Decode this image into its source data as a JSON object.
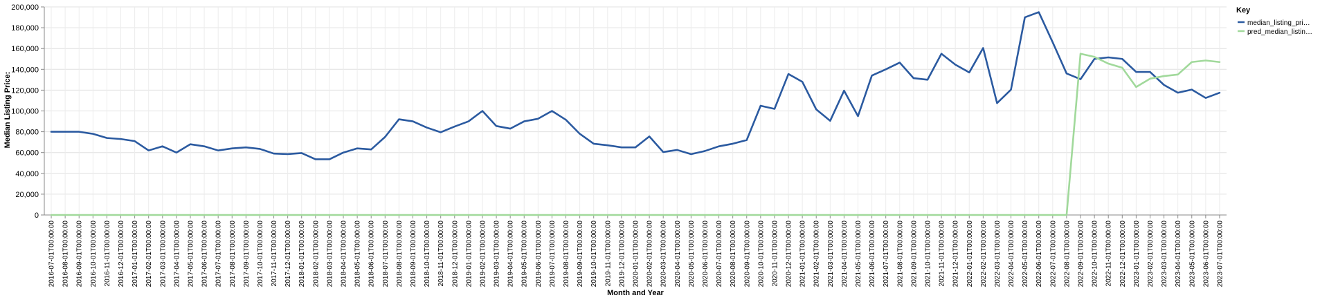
{
  "chart_data": {
    "type": "line",
    "xlabel": "Month and Year",
    "ylabel": "Median Listing Price:",
    "ylim": [
      0,
      200000
    ],
    "yticks": [
      "0",
      "20,000",
      "40,000",
      "60,000",
      "80,000",
      "100,000",
      "120,000",
      "140,000",
      "160,000",
      "180,000",
      "200,000"
    ],
    "grid": true,
    "legend": {
      "title": "Key",
      "position": "top-right"
    },
    "x": [
      "2016-07-01T00:00:00",
      "2016-08-01T00:00:00",
      "2016-09-01T00:00:00",
      "2016-10-01T00:00:00",
      "2016-11-01T00:00:00",
      "2016-12-01T00:00:00",
      "2017-01-01T00:00:00",
      "2017-02-01T00:00:00",
      "2017-03-01T00:00:00",
      "2017-04-01T00:00:00",
      "2017-05-01T00:00:00",
      "2017-06-01T00:00:00",
      "2017-07-01T00:00:00",
      "2017-08-01T00:00:00",
      "2017-09-01T00:00:00",
      "2017-10-01T00:00:00",
      "2017-11-01T00:00:00",
      "2017-12-01T00:00:00",
      "2018-01-01T00:00:00",
      "2018-02-01T00:00:00",
      "2018-03-01T00:00:00",
      "2018-04-01T00:00:00",
      "2018-05-01T00:00:00",
      "2018-06-01T00:00:00",
      "2018-07-01T00:00:00",
      "2018-08-01T00:00:00",
      "2018-09-01T00:00:00",
      "2018-10-01T00:00:00",
      "2018-11-01T00:00:00",
      "2018-12-01T00:00:00",
      "2019-01-01T00:00:00",
      "2019-02-01T00:00:00",
      "2019-03-01T00:00:00",
      "2019-04-01T00:00:00",
      "2019-05-01T00:00:00",
      "2019-06-01T00:00:00",
      "2019-07-01T00:00:00",
      "2019-08-01T00:00:00",
      "2019-09-01T00:00:00",
      "2019-10-01T00:00:00",
      "2019-11-01T00:00:00",
      "2019-12-01T00:00:00",
      "2020-01-01T00:00:00",
      "2020-02-01T00:00:00",
      "2020-03-01T00:00:00",
      "2020-04-01T00:00:00",
      "2020-05-01T00:00:00",
      "2020-06-01T00:00:00",
      "2020-07-01T00:00:00",
      "2020-08-01T00:00:00",
      "2020-09-01T00:00:00",
      "2020-10-01T00:00:00",
      "2020-11-01T00:00:00",
      "2020-12-01T00:00:00",
      "2021-01-01T00:00:00",
      "2021-02-01T00:00:00",
      "2021-03-01T00:00:00",
      "2021-04-01T00:00:00",
      "2021-05-01T00:00:00",
      "2021-06-01T00:00:00",
      "2021-07-01T00:00:00",
      "2021-08-01T00:00:00",
      "2021-09-01T00:00:00",
      "2021-10-01T00:00:00",
      "2021-11-01T00:00:00",
      "2021-12-01T00:00:00",
      "2022-01-01T00:00:00",
      "2022-02-01T00:00:00",
      "2022-03-01T00:00:00",
      "2022-04-01T00:00:00",
      "2022-05-01T00:00:00",
      "2022-06-01T00:00:00",
      "2022-07-01T00:00:00",
      "2022-08-01T00:00:00",
      "2022-09-01T00:00:00",
      "2022-10-01T00:00:00",
      "2022-11-01T00:00:00",
      "2022-12-01T00:00:00",
      "2023-01-01T00:00:00",
      "2023-02-01T00:00:00",
      "2023-03-01T00:00:00",
      "2023-04-01T00:00:00",
      "2023-05-01T00:00:00",
      "2023-06-01T00:00:00",
      "2023-07-01T00:00:00"
    ],
    "series": [
      {
        "name": "median_listing_pri…",
        "color": "#2b5aa0",
        "values": [
          80000,
          80000,
          80000,
          78000,
          74000,
          73000,
          71000,
          62000,
          66000,
          60000,
          68000,
          66000,
          62000,
          64000,
          65000,
          63500,
          59000,
          58500,
          59500,
          53500,
          53500,
          60000,
          64000,
          63000,
          75000,
          92000,
          90000,
          84000,
          79500,
          85000,
          90000,
          100000,
          85500,
          83000,
          90000,
          92500,
          100000,
          91500,
          78000,
          68500,
          67000,
          65000,
          65000,
          75500,
          60500,
          62500,
          58500,
          61500,
          66000,
          68500,
          72000,
          105000,
          102000,
          135500,
          128000,
          101500,
          90500,
          119500,
          95000,
          134000,
          140000,
          146500,
          131500,
          130000,
          155000,
          144500,
          137000,
          160500,
          107500,
          120500,
          190000,
          195000,
          166000,
          136000,
          130500,
          150000,
          151500,
          150000,
          137500,
          137500,
          125000,
          117500,
          120500,
          112500,
          117500
        ]
      },
      {
        "name": "pred_median_listin…",
        "color": "#a1d99b",
        "values": [
          0,
          0,
          0,
          0,
          0,
          0,
          0,
          0,
          0,
          0,
          0,
          0,
          0,
          0,
          0,
          0,
          0,
          0,
          0,
          0,
          0,
          0,
          0,
          0,
          0,
          0,
          0,
          0,
          0,
          0,
          0,
          0,
          0,
          0,
          0,
          0,
          0,
          0,
          0,
          0,
          0,
          0,
          0,
          0,
          0,
          0,
          0,
          0,
          0,
          0,
          0,
          0,
          0,
          0,
          0,
          0,
          0,
          0,
          0,
          0,
          0,
          0,
          0,
          0,
          0,
          0,
          0,
          0,
          0,
          0,
          0,
          0,
          0,
          0,
          155000,
          152000,
          145500,
          141500,
          123000,
          131000,
          133500,
          135000,
          147000,
          148500,
          147000
        ]
      }
    ]
  }
}
